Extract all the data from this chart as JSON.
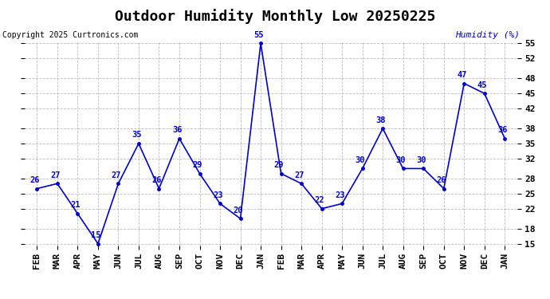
{
  "title": "Outdoor Humidity Monthly Low 20250225",
  "copyright": "Copyright 2025 Curtronics.com",
  "right_label": "Humidity (%)",
  "months": [
    "FEB",
    "MAR",
    "APR",
    "MAY",
    "JUN",
    "JUL",
    "AUG",
    "SEP",
    "OCT",
    "NOV",
    "DEC",
    "JAN",
    "FEB",
    "MAR",
    "APR",
    "MAY",
    "JUN",
    "JUL",
    "AUG",
    "SEP",
    "OCT",
    "NOV",
    "DEC",
    "JAN"
  ],
  "values": [
    26,
    27,
    21,
    15,
    27,
    35,
    26,
    36,
    29,
    23,
    20,
    55,
    29,
    27,
    22,
    23,
    30,
    38,
    30,
    30,
    26,
    47,
    45,
    36
  ],
  "line_color": "#0000cc",
  "ylim_min": 15,
  "ylim_max": 55,
  "yticks": [
    15,
    18,
    22,
    25,
    28,
    32,
    35,
    38,
    42,
    45,
    48,
    52,
    55
  ],
  "title_fontsize": 13,
  "tick_fontsize": 8,
  "annotation_fontsize": 7.5,
  "background_color": "#ffffff",
  "grid_color": "#aaaaaa"
}
